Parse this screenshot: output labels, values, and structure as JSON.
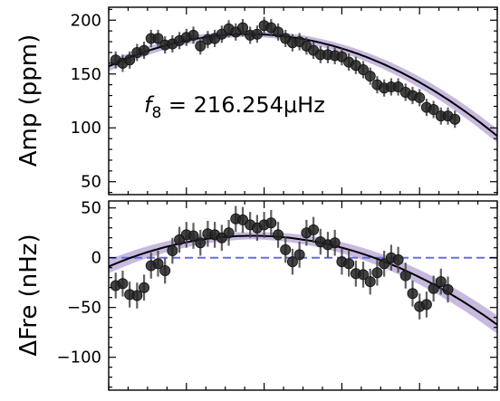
{
  "chart_data": [
    {
      "type": "scatter",
      "ylabel": "Amp (ppm)",
      "annotation": {
        "symbol": "f",
        "subscript": "8",
        "text": " = 216.254μHz"
      },
      "ylim": [
        38,
        212
      ],
      "xlim": [
        0,
        100
      ],
      "yticks": [
        50,
        100,
        150,
        200
      ],
      "ytick_labels": [
        "50",
        "100",
        "150",
        "200"
      ],
      "points": [
        {
          "x": 1.8,
          "y": 163,
          "err": 8
        },
        {
          "x": 3.6,
          "y": 160,
          "err": 8
        },
        {
          "x": 5.4,
          "y": 163,
          "err": 8
        },
        {
          "x": 7.3,
          "y": 170,
          "err": 8
        },
        {
          "x": 9.1,
          "y": 172,
          "err": 8
        },
        {
          "x": 10.9,
          "y": 183,
          "err": 8
        },
        {
          "x": 12.7,
          "y": 183,
          "err": 8
        },
        {
          "x": 14.5,
          "y": 177,
          "err": 8
        },
        {
          "x": 16.4,
          "y": 178,
          "err": 8
        },
        {
          "x": 18.2,
          "y": 181,
          "err": 8
        },
        {
          "x": 20.0,
          "y": 184,
          "err": 8
        },
        {
          "x": 21.8,
          "y": 186,
          "err": 8
        },
        {
          "x": 23.6,
          "y": 176,
          "err": 8
        },
        {
          "x": 25.5,
          "y": 182,
          "err": 8
        },
        {
          "x": 27.3,
          "y": 183,
          "err": 8
        },
        {
          "x": 29.1,
          "y": 187,
          "err": 8
        },
        {
          "x": 30.9,
          "y": 192,
          "err": 8
        },
        {
          "x": 32.7,
          "y": 189,
          "err": 8
        },
        {
          "x": 34.5,
          "y": 193,
          "err": 8
        },
        {
          "x": 36.4,
          "y": 186,
          "err": 8
        },
        {
          "x": 38.2,
          "y": 187,
          "err": 8
        },
        {
          "x": 40.0,
          "y": 195,
          "err": 8
        },
        {
          "x": 41.8,
          "y": 193,
          "err": 8
        },
        {
          "x": 43.6,
          "y": 189,
          "err": 8
        },
        {
          "x": 45.5,
          "y": 183,
          "err": 8
        },
        {
          "x": 47.3,
          "y": 179,
          "err": 8
        },
        {
          "x": 49.1,
          "y": 180,
          "err": 8
        },
        {
          "x": 50.9,
          "y": 176,
          "err": 8
        },
        {
          "x": 52.7,
          "y": 172,
          "err": 8
        },
        {
          "x": 54.5,
          "y": 168,
          "err": 8
        },
        {
          "x": 56.4,
          "y": 168,
          "err": 8
        },
        {
          "x": 58.2,
          "y": 167,
          "err": 8
        },
        {
          "x": 60.0,
          "y": 166,
          "err": 8
        },
        {
          "x": 61.8,
          "y": 161,
          "err": 8
        },
        {
          "x": 63.6,
          "y": 158,
          "err": 8
        },
        {
          "x": 65.5,
          "y": 154,
          "err": 8
        },
        {
          "x": 67.3,
          "y": 148,
          "err": 8
        },
        {
          "x": 69.1,
          "y": 140,
          "err": 8
        },
        {
          "x": 70.9,
          "y": 137,
          "err": 8
        },
        {
          "x": 72.7,
          "y": 138,
          "err": 8
        },
        {
          "x": 74.5,
          "y": 138,
          "err": 8
        },
        {
          "x": 76.4,
          "y": 133,
          "err": 8
        },
        {
          "x": 78.2,
          "y": 130,
          "err": 8
        },
        {
          "x": 80.0,
          "y": 128,
          "err": 8
        },
        {
          "x": 81.8,
          "y": 119,
          "err": 8
        },
        {
          "x": 83.6,
          "y": 117,
          "err": 8
        },
        {
          "x": 85.5,
          "y": 111,
          "err": 8
        },
        {
          "x": 87.3,
          "y": 111,
          "err": 8
        },
        {
          "x": 89.1,
          "y": 108,
          "err": 8
        }
      ],
      "fit": {
        "type": "quadratic",
        "peak_x": 36,
        "peak_y": 187,
        "curvature": 0.0231
      },
      "fit_color": "#000000",
      "band_color": "#9b7fc4",
      "point_color": "#222222"
    },
    {
      "type": "scatter",
      "ylabel": "ΔFre (nHz)",
      "ylim": [
        -133,
        57
      ],
      "xlim": [
        0,
        100
      ],
      "yticks": [
        -100,
        -50,
        0,
        50
      ],
      "ytick_labels": [
        "−100",
        "−50",
        "0",
        "50"
      ],
      "reference_line": {
        "y": 0,
        "color": "#6a6ae6",
        "style": "dashed"
      },
      "points": [
        {
          "x": 1.8,
          "y": -28,
          "err": 13
        },
        {
          "x": 3.6,
          "y": -26,
          "err": 13
        },
        {
          "x": 5.4,
          "y": -37,
          "err": 13
        },
        {
          "x": 7.3,
          "y": -38,
          "err": 13
        },
        {
          "x": 9.1,
          "y": -30,
          "err": 13
        },
        {
          "x": 10.9,
          "y": -8,
          "err": 13
        },
        {
          "x": 12.7,
          "y": -6,
          "err": 13
        },
        {
          "x": 14.5,
          "y": -13,
          "err": 13
        },
        {
          "x": 16.4,
          "y": 7,
          "err": 13
        },
        {
          "x": 18.2,
          "y": 18,
          "err": 13
        },
        {
          "x": 20.0,
          "y": 23,
          "err": 13
        },
        {
          "x": 21.8,
          "y": 22,
          "err": 13
        },
        {
          "x": 23.6,
          "y": 15,
          "err": 13
        },
        {
          "x": 25.5,
          "y": 24,
          "err": 13
        },
        {
          "x": 27.3,
          "y": 23,
          "err": 13
        },
        {
          "x": 29.1,
          "y": 20,
          "err": 13
        },
        {
          "x": 30.9,
          "y": 25,
          "err": 13
        },
        {
          "x": 32.7,
          "y": 39,
          "err": 13
        },
        {
          "x": 34.5,
          "y": 38,
          "err": 13
        },
        {
          "x": 36.4,
          "y": 33,
          "err": 13
        },
        {
          "x": 38.2,
          "y": 30,
          "err": 13
        },
        {
          "x": 40.0,
          "y": 33,
          "err": 13
        },
        {
          "x": 41.8,
          "y": 35,
          "err": 13
        },
        {
          "x": 43.6,
          "y": 23,
          "err": 13
        },
        {
          "x": 45.5,
          "y": 8,
          "err": 13
        },
        {
          "x": 47.3,
          "y": -4,
          "err": 13
        },
        {
          "x": 49.1,
          "y": 3,
          "err": 13
        },
        {
          "x": 50.9,
          "y": 25,
          "err": 13
        },
        {
          "x": 52.7,
          "y": 28,
          "err": 13
        },
        {
          "x": 54.5,
          "y": 16,
          "err": 13
        },
        {
          "x": 56.4,
          "y": 13,
          "err": 13
        },
        {
          "x": 58.2,
          "y": 15,
          "err": 13
        },
        {
          "x": 60.0,
          "y": -4,
          "err": 13
        },
        {
          "x": 61.8,
          "y": -6,
          "err": 13
        },
        {
          "x": 63.6,
          "y": -16,
          "err": 13
        },
        {
          "x": 65.5,
          "y": -17,
          "err": 13
        },
        {
          "x": 67.3,
          "y": -24,
          "err": 13
        },
        {
          "x": 69.1,
          "y": -15,
          "err": 13
        },
        {
          "x": 70.9,
          "y": -6,
          "err": 13
        },
        {
          "x": 72.7,
          "y": 0,
          "err": 13
        },
        {
          "x": 74.5,
          "y": -2,
          "err": 13
        },
        {
          "x": 76.4,
          "y": -18,
          "err": 13
        },
        {
          "x": 78.2,
          "y": -36,
          "err": 13
        },
        {
          "x": 80.0,
          "y": -49,
          "err": 13
        },
        {
          "x": 81.8,
          "y": -47,
          "err": 13
        },
        {
          "x": 83.6,
          "y": -31,
          "err": 13
        },
        {
          "x": 85.5,
          "y": -24,
          "err": 13
        },
        {
          "x": 87.3,
          "y": -32,
          "err": 13
        }
      ],
      "fit": {
        "type": "quadratic",
        "peak_x": 37,
        "peak_y": 22,
        "curvature": 0.0225
      },
      "fit_color": "#000000",
      "band_color": "#9b7fc4",
      "point_color": "#222222"
    }
  ]
}
